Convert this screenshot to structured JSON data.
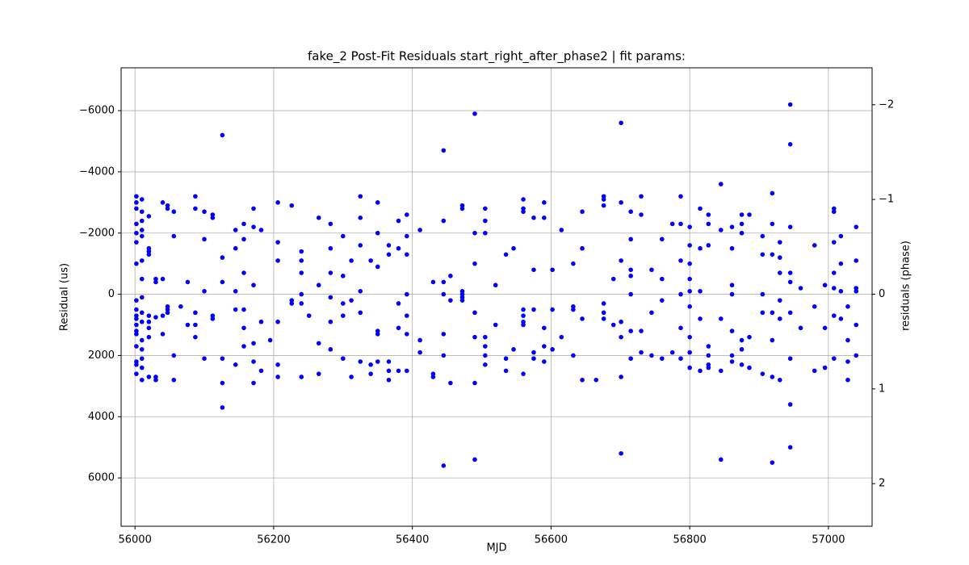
{
  "chart_data": {
    "type": "scatter",
    "title": "fake_2 Post-Fit Residuals start_right_after_phase2 | fit params:",
    "xlabel": "MJD",
    "ylabel": "Residual (us)",
    "y2label": "residuals (phase)",
    "color": "#0000ff",
    "grid": true,
    "xlim": [
      55980,
      57063
    ],
    "xticks": [
      56000,
      56200,
      56400,
      56600,
      56800,
      57000
    ],
    "ylim": [
      7580,
      -7400
    ],
    "yticks": [
      {
        "value": -6000,
        "label": "−6000"
      },
      {
        "value": -4000,
        "label": "−4000"
      },
      {
        "value": -2000,
        "label": "−2000"
      },
      0,
      2000,
      4000,
      6000
    ],
    "y2lim": [
      2.45,
      -2.39
    ],
    "y2ticks": [
      {
        "value": -2,
        "label": "−2"
      },
      {
        "value": -1,
        "label": "−1"
      },
      0,
      1,
      2
    ],
    "x": [
      56002,
      56002,
      56002,
      56002,
      56002,
      56002,
      56002,
      56002,
      56002,
      56002,
      56002,
      56002,
      56002,
      56002,
      56002,
      56002,
      56002,
      56002,
      56010,
      56010,
      56010,
      56010,
      56010,
      56010,
      56010,
      56010,
      56010,
      56010,
      56010,
      56010,
      56010,
      56010,
      56010,
      56020,
      56020,
      56020,
      56020,
      56020,
      56020,
      56020,
      56020,
      56020,
      56030,
      56030,
      56030,
      56030,
      56030,
      56040,
      56040,
      56040,
      56040,
      56047,
      56047,
      56047,
      56047,
      56047,
      56056,
      56056,
      56056,
      56056,
      56066,
      56076,
      56076,
      56087,
      56087,
      56087,
      56087,
      56087,
      56100,
      56100,
      56100,
      56100,
      56112,
      56112,
      56112,
      56112,
      56126,
      56126,
      56126,
      56126,
      56126,
      56126,
      56145,
      56145,
      56145,
      56145,
      56145,
      56157,
      56157,
      56157,
      56157,
      56157,
      56157,
      56171,
      56171,
      56171,
      56171,
      56171,
      56171,
      56182,
      56182,
      56182,
      56195,
      56206,
      56206,
      56206,
      56206,
      56206,
      56206,
      56226,
      56226,
      56226,
      56240,
      56240,
      56240,
      56240,
      56240,
      56240,
      56251,
      56265,
      56265,
      56265,
      56265,
      56282,
      56282,
      56282,
      56282,
      56282,
      56282,
      56300,
      56300,
      56300,
      56300,
      56300,
      56312,
      56312,
      56312,
      56325,
      56325,
      56325,
      56325,
      56325,
      56325,
      56340,
      56340,
      56340,
      56350,
      56350,
      56350,
      56350,
      56350,
      56350,
      56366,
      56366,
      56366,
      56366,
      56366,
      56380,
      56380,
      56380,
      56380,
      56380,
      56392,
      56392,
      56392,
      56392,
      56392,
      56392,
      56392,
      56411,
      56411,
      56411,
      56430,
      56430,
      56430,
      56445,
      56445,
      56445,
      56445,
      56445,
      56445,
      56445,
      56455,
      56455,
      56455,
      56472,
      56472,
      56472,
      56472,
      56472,
      56472,
      56490,
      56490,
      56490,
      56490,
      56490,
      56490,
      56490,
      56505,
      56505,
      56505,
      56505,
      56505,
      56505,
      56505,
      56520,
      56520,
      56535,
      56535,
      56535,
      56546,
      56546,
      56560,
      56560,
      56560,
      56560,
      56560,
      56560,
      56560,
      56560,
      56575,
      56575,
      56575,
      56575,
      56575,
      56590,
      56590,
      56590,
      56590,
      56590,
      56602,
      56602,
      56602,
      56615,
      56615,
      56632,
      56632,
      56632,
      56632,
      56645,
      56645,
      56645,
      56645,
      56665,
      56676,
      56676,
      56676,
      56676,
      56676,
      56676,
      56690,
      56690,
      56701,
      56701,
      56701,
      56701,
      56701,
      56701,
      56701,
      56715,
      56715,
      56715,
      56715,
      56715,
      56715,
      56715,
      56730,
      56730,
      56730,
      56730,
      56745,
      56745,
      56745,
      56760,
      56760,
      56760,
      56760,
      56775,
      56775,
      56787,
      56787,
      56787,
      56787,
      56787,
      56787,
      56800,
      56800,
      56800,
      56800,
      56800,
      56800,
      56800,
      56800,
      56800,
      56815,
      56815,
      56815,
      56815,
      56815,
      56827,
      56827,
      56827,
      56827,
      56827,
      56827,
      56827,
      56845,
      56845,
      56845,
      56845,
      56845,
      56861,
      56861,
      56861,
      56861,
      56861,
      56861,
      56861,
      56875,
      56875,
      56875,
      56875,
      56875,
      56875,
      56886,
      56886,
      56886,
      56905,
      56905,
      56905,
      56905,
      56905,
      56919,
      56919,
      56919,
      56919,
      56919,
      56919,
      56919,
      56930,
      56930,
      56930,
      56930,
      56930,
      56930,
      56945,
      56945,
      56945,
      56945,
      56945,
      56945,
      56945,
      56945,
      56945,
      56960,
      56960,
      56980,
      56980,
      56980,
      56995,
      56995,
      56995,
      57008,
      57008,
      57008,
      57008,
      57008,
      57008,
      57008,
      57018,
      57018,
      57018,
      57018,
      57028,
      57028,
      57028,
      57028,
      57040,
      57040,
      57040,
      57040,
      57040,
      57040
    ],
    "values": [
      -3200,
      -3000,
      -2800,
      -2300,
      -2000,
      -1700,
      -1000,
      200,
      500,
      700,
      800,
      1000,
      1200,
      1300,
      1700,
      2200,
      2300,
      2600,
      -3100,
      -2700,
      -2400,
      -2100,
      -1900,
      -1100,
      -500,
      100,
      600,
      900,
      1500,
      1800,
      2100,
      2400,
      2800,
      -2550,
      -1500,
      -1300,
      -1400,
      700,
      900,
      1100,
      1400,
      2700,
      -500,
      -400,
      2700,
      2800,
      750,
      -3000,
      -500,
      700,
      1300,
      -2900,
      -2800,
      400,
      500,
      600,
      -1900,
      -2700,
      2000,
      2800,
      400,
      -400,
      1000,
      -3200,
      -2800,
      600,
      1000,
      1400,
      -2700,
      -1800,
      -100,
      2100,
      -2500,
      -2600,
      700,
      800,
      -5200,
      -1200,
      -400,
      2100,
      2900,
      3700,
      -2100,
      -1500,
      -100,
      500,
      2300,
      -2300,
      -1800,
      -700,
      500,
      1100,
      1700,
      -2800,
      -2200,
      -300,
      1600,
      2200,
      2900,
      -2100,
      900,
      2500,
      1500,
      -3000,
      -1700,
      -1100,
      900,
      2300,
      2700,
      -2900,
      200,
      300,
      -1400,
      -1100,
      -700,
      0,
      300,
      2700,
      700,
      -2500,
      -300,
      1600,
      2600,
      -2300,
      -1500,
      -700,
      100,
      900,
      1800,
      -1900,
      -600,
      300,
      700,
      2100,
      -1100,
      200,
      2700,
      -3200,
      -2500,
      -1600,
      -100,
      600,
      2200,
      -1100,
      2300,
      2600,
      -3000,
      -2000,
      -900,
      1200,
      1300,
      2200,
      -1600,
      -1300,
      2200,
      2500,
      2800,
      -2400,
      -1500,
      300,
      1100,
      2500,
      -2600,
      -1900,
      -1300,
      0,
      700,
      1300,
      2500,
      -2100,
      1500,
      1900,
      -400,
      2600,
      2700,
      -4700,
      -2400,
      -400,
      0,
      1300,
      2000,
      5600,
      -600,
      200,
      2900,
      -2800,
      -2900,
      0,
      -100,
      100,
      200,
      -5900,
      -2000,
      -1000,
      600,
      1400,
      2900,
      5400,
      -2800,
      -2400,
      -2000,
      1400,
      1700,
      2000,
      2300,
      -300,
      1000,
      -1300,
      2100,
      2500,
      -1500,
      1800,
      -3100,
      -2800,
      -2700,
      500,
      700,
      900,
      1000,
      2600,
      -2500,
      -800,
      500,
      1900,
      2100,
      -3000,
      -2500,
      1100,
      1700,
      2200,
      -800,
      500,
      1800,
      -2100,
      1400,
      -1000,
      400,
      500,
      2000,
      -2700,
      -1500,
      800,
      2800,
      2800,
      -3200,
      -3100,
      -2900,
      300,
      600,
      800,
      -500,
      1000,
      -5600,
      -3000,
      -1100,
      900,
      1400,
      2700,
      5200,
      -2700,
      -1800,
      -800,
      -600,
      0,
      1200,
      2100,
      -3200,
      -2600,
      1200,
      1900,
      -800,
      600,
      2000,
      -1800,
      -500,
      200,
      2100,
      -2300,
      1900,
      -3200,
      -2300,
      -1100,
      0,
      1100,
      2100,
      -2200,
      -1600,
      -1000,
      -500,
      -100,
      400,
      1400,
      1900,
      2400,
      -2800,
      -1500,
      -100,
      800,
      2500,
      -2600,
      -2300,
      -1600,
      1700,
      2000,
      2300,
      2400,
      -3600,
      -2100,
      800,
      2500,
      5400,
      -2200,
      -1500,
      -300,
      0,
      1200,
      2000,
      2200,
      -2600,
      -2300,
      -2000,
      1500,
      1800,
      2300,
      -2600,
      1400,
      2400,
      -1900,
      -1300,
      0,
      600,
      2600,
      -3300,
      -2300,
      -1300,
      600,
      1500,
      2700,
      5500,
      -1700,
      -1200,
      -700,
      200,
      800,
      2800,
      -6200,
      -4900,
      -2200,
      -700,
      -400,
      600,
      2100,
      3600,
      5000,
      -200,
      1100,
      -1600,
      400,
      2500,
      -300,
      1100,
      2400,
      -2800,
      -2700,
      -1700,
      -700,
      -200,
      700,
      2100,
      -1900,
      -1000,
      -100,
      800,
      400,
      1500,
      2200,
      2800,
      -2200,
      -1100,
      -200,
      -100,
      1000,
      2000
    ]
  }
}
